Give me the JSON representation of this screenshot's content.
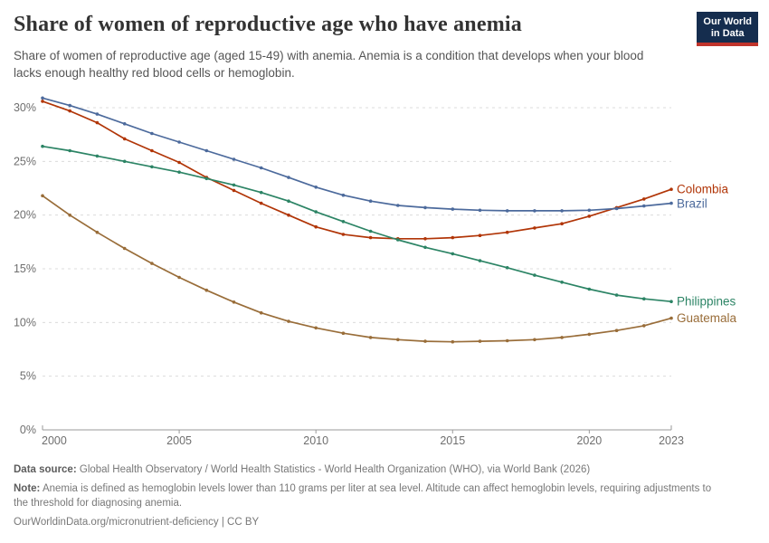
{
  "header": {
    "title": "Share of women of reproductive age who have anemia",
    "subtitle": "Share of women of reproductive age (aged 15-49) with anemia. Anemia is a condition that develops when your blood lacks enough healthy red blood cells or hemoglobin.",
    "logo": {
      "line1": "Our World",
      "line2": "in Data",
      "bg_color": "#152D4E",
      "stripe_color": "#C0342B"
    }
  },
  "chart_data": {
    "type": "line",
    "title": "Share of women of reproductive age who have anemia",
    "xlabel": "",
    "ylabel": "",
    "xlim": [
      2000,
      2023
    ],
    "ylim": [
      0,
      31.5
    ],
    "xticks": [
      2000,
      2005,
      2010,
      2015,
      2020,
      2023
    ],
    "yticks": [
      0,
      5,
      10,
      15,
      20,
      25,
      30
    ],
    "ytick_suffix": "%",
    "grid": "horizontal-dashed",
    "legend_position": "right-end-labels",
    "x": [
      2000,
      2001,
      2002,
      2003,
      2004,
      2005,
      2006,
      2007,
      2008,
      2009,
      2010,
      2011,
      2012,
      2013,
      2014,
      2015,
      2016,
      2017,
      2018,
      2019,
      2020,
      2021,
      2022,
      2023
    ],
    "series": [
      {
        "name": "Colombia",
        "color": "#B13507",
        "values": [
          30.6,
          29.7,
          28.6,
          27.1,
          26.0,
          24.9,
          23.5,
          22.3,
          21.1,
          20.0,
          18.9,
          18.2,
          17.9,
          17.8,
          17.8,
          17.9,
          18.1,
          18.4,
          18.8,
          19.2,
          19.9,
          20.7,
          21.5,
          22.4
        ]
      },
      {
        "name": "Brazil",
        "color": "#4C6A9C",
        "values": [
          30.9,
          30.2,
          29.4,
          28.5,
          27.6,
          26.8,
          26.0,
          25.2,
          24.4,
          23.5,
          22.6,
          21.85,
          21.3,
          20.9,
          20.7,
          20.55,
          20.45,
          20.4,
          20.4,
          20.4,
          20.45,
          20.6,
          20.85,
          21.1
        ]
      },
      {
        "name": "Philippines",
        "color": "#2C8465",
        "values": [
          26.4,
          26.0,
          25.5,
          25.0,
          24.5,
          24.0,
          23.4,
          22.8,
          22.1,
          21.3,
          20.3,
          19.4,
          18.5,
          17.7,
          17.0,
          16.4,
          15.75,
          15.1,
          14.4,
          13.75,
          13.1,
          12.55,
          12.2,
          11.95
        ]
      },
      {
        "name": "Guatemala",
        "color": "#996D39",
        "values": [
          21.8,
          20.0,
          18.4,
          16.9,
          15.5,
          14.2,
          13.0,
          11.9,
          10.9,
          10.1,
          9.5,
          9.0,
          8.6,
          8.4,
          8.25,
          8.2,
          8.25,
          8.3,
          8.4,
          8.6,
          8.9,
          9.25,
          9.7,
          10.4
        ]
      }
    ]
  },
  "footer": {
    "data_source_label": "Data source:",
    "data_source": "Global Health Observatory / World Health Statistics - World Health Organization (WHO), via World Bank (2026)",
    "note_label": "Note:",
    "note": "Anemia is defined as hemoglobin levels lower than 110 grams per liter at sea level. Altitude can affect hemoglobin levels, requiring adjustments to the threshold for diagnosing anemia.",
    "link": "OurWorldinData.org/micronutrient-deficiency | CC BY"
  }
}
